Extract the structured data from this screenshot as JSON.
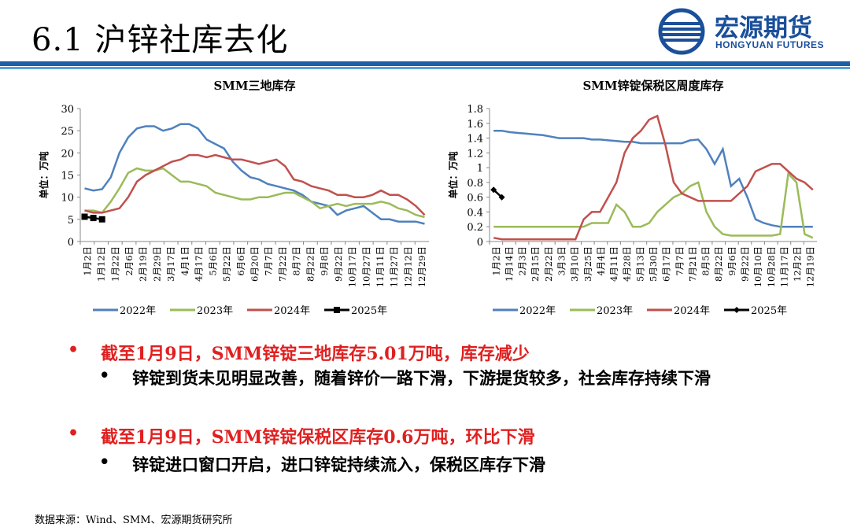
{
  "header": {
    "title": "6.1 沪锌社库去化",
    "logo_cn": "宏源期货",
    "logo_en": "HONGYUAN FUTURES"
  },
  "colors": {
    "s2022": "#4f81bd",
    "s2023": "#9bbb59",
    "s2024": "#c0504d",
    "s2025": "#000000",
    "band": "#1a5fa8",
    "red": "#e02020"
  },
  "chart_data": [
    {
      "type": "line",
      "title": "SMM三地库存",
      "ylabel": "单位：万吨",
      "ylim": [
        0,
        30
      ],
      "yticks": [
        0,
        5,
        10,
        15,
        20,
        25,
        30
      ],
      "xlabels": [
        "1月2日",
        "1月12日",
        "1月22日",
        "2月6日",
        "2月19日",
        "2月29日",
        "3月17日",
        "4月1日",
        "4月17日",
        "5月6日",
        "5月22日",
        "6月6日",
        "6月20日",
        "7月7日",
        "7月22日",
        "8月7日",
        "8月22日",
        "9月8日",
        "9月22日",
        "10月17日",
        "10月27日",
        "11月11日",
        "11月27日",
        "12月12日",
        "12月29日"
      ],
      "legend": [
        "2022年",
        "2023年",
        "2024年",
        "2025年"
      ],
      "series": [
        {
          "name": "2022年",
          "values": [
            12,
            11.5,
            11.8,
            14.5,
            20,
            23.5,
            25.5,
            26,
            26,
            25,
            25.5,
            26.5,
            26.5,
            25.5,
            23,
            22,
            21,
            18,
            16,
            14.5,
            14,
            13,
            12.5,
            12,
            11.5,
            10.5,
            9,
            8.5,
            8,
            6,
            7,
            7.5,
            8,
            6.5,
            5,
            5,
            4.5,
            4.5,
            4.5,
            4
          ]
        },
        {
          "name": "2023年",
          "values": [
            7,
            7,
            6.5,
            9,
            12,
            15.5,
            16.5,
            16,
            16,
            16.5,
            15,
            13.5,
            13.5,
            13,
            12.5,
            11,
            10.5,
            10,
            9.5,
            9.5,
            10,
            10,
            10.5,
            11,
            11,
            10,
            9,
            7.5,
            8,
            8.5,
            8,
            8.5,
            8.5,
            8.5,
            9,
            8.5,
            7.5,
            7,
            6,
            5.5
          ]
        },
        {
          "name": "2024年",
          "values": [
            7,
            6.5,
            6.5,
            7,
            7.5,
            10,
            13.5,
            15,
            16,
            17,
            18,
            18.5,
            19.5,
            19.5,
            19,
            19.5,
            19,
            18.5,
            18.5,
            18,
            17.5,
            18,
            18.5,
            17,
            14,
            13.5,
            12.5,
            12,
            11.5,
            10.5,
            10.5,
            10,
            10,
            10.5,
            11.5,
            10.5,
            10.5,
            9.5,
            8,
            6
          ]
        },
        {
          "name": "2025年",
          "values": [
            5.6,
            5.3,
            5.0
          ]
        }
      ]
    },
    {
      "type": "line",
      "title": "SMM锌锭保税区周度库存",
      "ylabel": "单位：万吨",
      "ylim": [
        0,
        1.8
      ],
      "yticks": [
        0,
        0.2,
        0.4,
        0.6,
        0.8,
        1,
        1.2,
        1.4,
        1.6,
        1.8
      ],
      "xlabels": [
        "1月2日",
        "1月14日",
        "2月3日",
        "2月15日",
        "2月22日",
        "3月3日",
        "3月10日",
        "3月25日",
        "4月4日",
        "4月11日",
        "4月28日",
        "5月13日",
        "5月30日",
        "6月17日",
        "7月7日",
        "7月21日",
        "8月5日",
        "8月22日",
        "9月6日",
        "9月22日",
        "10月10日",
        "10月28日",
        "11月17日",
        "12月2日",
        "12月19日"
      ],
      "legend": [
        "2022年",
        "2023年",
        "2024年",
        "2025年"
      ],
      "series": [
        {
          "name": "2022年",
          "values": [
            1.5,
            1.5,
            1.48,
            1.47,
            1.46,
            1.45,
            1.44,
            1.42,
            1.4,
            1.4,
            1.4,
            1.4,
            1.38,
            1.38,
            1.37,
            1.36,
            1.35,
            1.35,
            1.33,
            1.33,
            1.33,
            1.33,
            1.33,
            1.33,
            1.37,
            1.38,
            1.25,
            1.05,
            1.25,
            0.75,
            0.85,
            0.6,
            0.3,
            0.25,
            0.22,
            0.2,
            0.2,
            0.2,
            0.2,
            0.2
          ]
        },
        {
          "name": "2023年",
          "values": [
            0.2,
            0.2,
            0.2,
            0.2,
            0.2,
            0.2,
            0.2,
            0.2,
            0.2,
            0.2,
            0.2,
            0.2,
            0.25,
            0.25,
            0.25,
            0.5,
            0.4,
            0.2,
            0.2,
            0.25,
            0.4,
            0.5,
            0.6,
            0.65,
            0.75,
            0.8,
            0.4,
            0.2,
            0.1,
            0.08,
            0.08,
            0.08,
            0.08,
            0.08,
            0.08,
            0.1,
            0.92,
            0.8,
            0.1,
            0.05
          ]
        },
        {
          "name": "2024年",
          "values": [
            0.05,
            0.03,
            0.03,
            0.03,
            0.03,
            0.03,
            0.03,
            0.03,
            0.03,
            0.03,
            0.03,
            0.3,
            0.4,
            0.4,
            0.6,
            0.8,
            1.2,
            1.4,
            1.5,
            1.65,
            1.7,
            1.3,
            0.8,
            0.65,
            0.6,
            0.55,
            0.55,
            0.55,
            0.55,
            0.55,
            0.65,
            0.75,
            0.95,
            1.0,
            1.05,
            1.05,
            0.95,
            0.85,
            0.8,
            0.7
          ]
        },
        {
          "name": "2025年",
          "values": [
            0.7,
            0.6
          ]
        }
      ]
    }
  ],
  "bullets": {
    "b1": "截至1月9日，SMM锌锭三地库存5.01万吨，库存减少",
    "b1_sub": "锌锭到货未见明显改善，随着锌价一路下滑，下游提货较多，社会库存持续下滑",
    "b2": "截至1月9日，SMM锌锭保税区库存0.6万吨，环比下滑",
    "b2_sub": "锌锭进口窗口开启，进口锌锭持续流入，保税区库存下滑",
    "dot_main": "•",
    "dot_sub": "•"
  },
  "source": "数据来源：Wind、SMM、宏源期货研究所"
}
